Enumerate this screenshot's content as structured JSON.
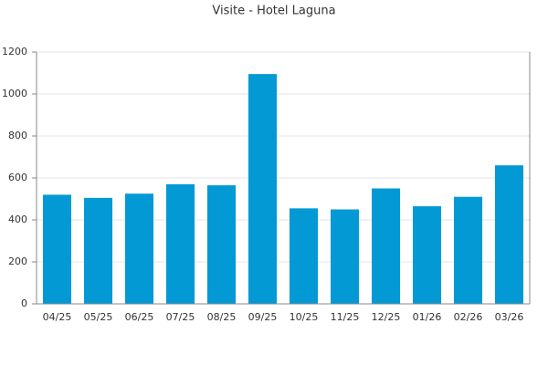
{
  "chart_data": {
    "type": "bar",
    "title": "Visite - Hotel Laguna",
    "categories": [
      "04/25",
      "05/25",
      "06/25",
      "07/25",
      "08/25",
      "09/25",
      "10/25",
      "11/25",
      "12/25",
      "01/26",
      "02/26",
      "03/26"
    ],
    "values": [
      520,
      505,
      525,
      570,
      565,
      1095,
      455,
      450,
      550,
      465,
      510,
      660
    ],
    "color": "#0399d4",
    "ylim": [
      0,
      1200
    ],
    "yticks": [
      0,
      200,
      400,
      600,
      800,
      1000,
      1200
    ],
    "grid": true
  }
}
